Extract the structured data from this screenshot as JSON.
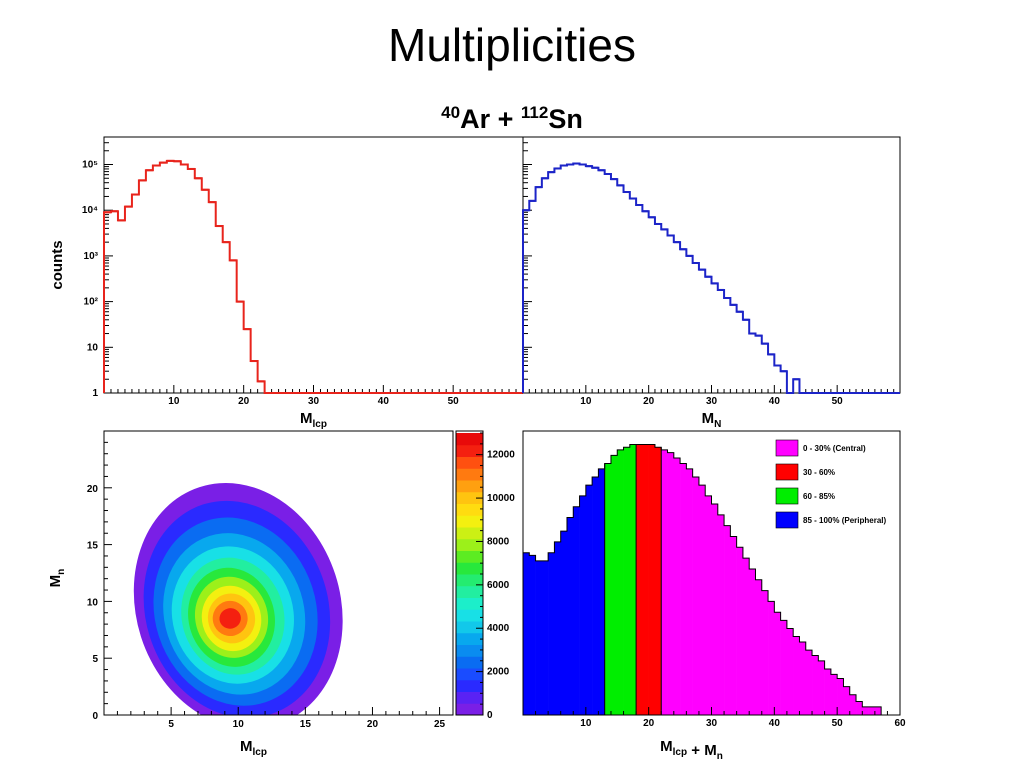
{
  "slide": {
    "title": "Multiplicities"
  },
  "figure": {
    "title_a_mass": "40",
    "title_a": "Ar + ",
    "title_b_mass": "112",
    "title_b": "Sn"
  },
  "chart_data": [
    {
      "type": "step",
      "panel": "top-left",
      "xlabel": "M_lcp",
      "ylabel": "counts",
      "xlim": [
        0,
        60
      ],
      "ylim": [
        1,
        400000
      ],
      "ylog": true,
      "xticks": [
        10,
        20,
        30,
        40,
        50
      ],
      "yticks": [
        {
          "v": 1,
          "t": "1"
        },
        {
          "v": 10,
          "t": "10"
        },
        {
          "v": 100,
          "t": "10²"
        },
        {
          "v": 1000,
          "t": "10³"
        },
        {
          "v": 10000,
          "t": "10⁴"
        },
        {
          "v": 100000,
          "t": "10⁵"
        }
      ],
      "color": "#e8241c",
      "bin_width": 1,
      "x": [
        0,
        1,
        2,
        3,
        4,
        5,
        6,
        7,
        8,
        9,
        10,
        11,
        12,
        13,
        14,
        15,
        16,
        17,
        18,
        19,
        20,
        21,
        22,
        23,
        24
      ],
      "values": [
        9000,
        9500,
        6000,
        12000,
        22000,
        45000,
        75000,
        95000,
        110000,
        120000,
        118000,
        100000,
        80000,
        50000,
        28000,
        15000,
        4500,
        2000,
        800,
        100,
        25,
        5,
        1.8,
        1,
        1
      ]
    },
    {
      "type": "step",
      "panel": "top-right",
      "xlabel": "M_N",
      "xlim": [
        0,
        60
      ],
      "ylim": [
        1,
        400000
      ],
      "ylog": true,
      "xticks": [
        10,
        20,
        30,
        40,
        50
      ],
      "color": "#1c24c8",
      "bin_width": 1,
      "x": [
        0,
        1,
        2,
        3,
        4,
        5,
        6,
        7,
        8,
        9,
        10,
        11,
        12,
        13,
        14,
        15,
        16,
        17,
        18,
        19,
        20,
        21,
        22,
        23,
        24,
        25,
        26,
        27,
        28,
        29,
        30,
        31,
        32,
        33,
        34,
        35,
        36,
        37,
        38,
        39,
        40,
        41,
        42,
        43,
        44,
        45,
        46,
        47
      ],
      "values": [
        10000,
        16000,
        32000,
        50000,
        68000,
        82000,
        95000,
        100000,
        105000,
        100000,
        92000,
        85000,
        75000,
        62000,
        48000,
        35000,
        25000,
        18000,
        13000,
        9500,
        7000,
        5000,
        3800,
        2800,
        2000,
        1400,
        1000,
        700,
        500,
        350,
        250,
        180,
        120,
        85,
        60,
        40,
        20,
        18,
        12,
        7,
        4,
        3,
        1,
        2,
        1,
        1,
        1,
        1
      ]
    },
    {
      "type": "heatmap",
      "panel": "bottom-left",
      "xlabel": "M_lcp",
      "ylabel": "M_n",
      "xlim": [
        0,
        26
      ],
      "ylim": [
        0,
        25
      ],
      "xticks": [
        5,
        10,
        15,
        20,
        25
      ],
      "yticks": [
        0,
        5,
        10,
        15,
        20
      ],
      "colorbar": {
        "range": [
          0,
          13000
        ],
        "ticks": [
          0,
          2000,
          4000,
          6000,
          8000,
          10000,
          12000
        ],
        "labels": [
          "0",
          "2000",
          "4000",
          "6000",
          "8000",
          "10000",
          "12000"
        ]
      },
      "contours": [
        {
          "level": 400,
          "color": "#7a1fe6",
          "cx": 10.0,
          "cy": 9.6,
          "rx": 7.6,
          "ry": 11.0,
          "rot": -18
        },
        {
          "level": 1300,
          "color": "#2a2aff",
          "cx": 9.9,
          "cy": 9.3,
          "rx": 6.8,
          "ry": 9.7,
          "rot": -18
        },
        {
          "level": 2200,
          "color": "#0a6cf2",
          "cx": 9.8,
          "cy": 9.1,
          "rx": 6.0,
          "ry": 8.4,
          "rot": -18
        },
        {
          "level": 3100,
          "color": "#08a8ee",
          "cx": 9.7,
          "cy": 8.9,
          "rx": 5.2,
          "ry": 7.2,
          "rot": -18
        },
        {
          "level": 4000,
          "color": "#18e0e6",
          "cx": 9.6,
          "cy": 8.8,
          "rx": 4.5,
          "ry": 6.1,
          "rot": -16
        },
        {
          "level": 5000,
          "color": "#22eea0",
          "cx": 9.6,
          "cy": 8.7,
          "rx": 3.8,
          "ry": 5.2,
          "rot": -16
        },
        {
          "level": 6000,
          "color": "#28e83c",
          "cx": 9.5,
          "cy": 8.6,
          "rx": 3.2,
          "ry": 4.4,
          "rot": -15
        },
        {
          "level": 7000,
          "color": "#9cf01a",
          "cx": 9.5,
          "cy": 8.6,
          "rx": 2.7,
          "ry": 3.6,
          "rot": -15
        },
        {
          "level": 8000,
          "color": "#f4f010",
          "cx": 9.5,
          "cy": 8.5,
          "rx": 2.2,
          "ry": 2.9,
          "rot": -15
        },
        {
          "level": 9000,
          "color": "#ffc410",
          "cx": 9.5,
          "cy": 8.5,
          "rx": 1.75,
          "ry": 2.2,
          "rot": -15
        },
        {
          "level": 10500,
          "color": "#ff7a10",
          "cx": 9.4,
          "cy": 8.5,
          "rx": 1.3,
          "ry": 1.55,
          "rot": -15
        },
        {
          "level": 12000,
          "color": "#f42010",
          "cx": 9.4,
          "cy": 8.5,
          "rx": 0.8,
          "ry": 0.9,
          "rot": -15
        }
      ]
    },
    {
      "type": "bar",
      "panel": "bottom-right",
      "xlabel": "M_lcp + M_n",
      "xlim": [
        0,
        60
      ],
      "xticks": [
        10,
        20,
        30,
        40,
        50,
        60
      ],
      "bin_width": 1,
      "x": [
        0,
        1,
        2,
        3,
        4,
        5,
        6,
        7,
        8,
        9,
        10,
        11,
        12,
        13,
        14,
        15,
        16,
        17,
        18,
        19,
        20,
        21,
        22,
        23,
        24,
        25,
        26,
        27,
        28,
        29,
        30,
        31,
        32,
        33,
        34,
        35,
        36,
        37,
        38,
        39,
        40,
        41,
        42,
        43,
        44,
        45,
        46,
        47,
        48,
        49,
        50,
        51,
        52,
        53,
        54,
        55,
        56
      ],
      "values": [
        60000,
        59000,
        57000,
        57000,
        60000,
        64000,
        68000,
        73000,
        77000,
        81000,
        85000,
        88000,
        91000,
        93000,
        96000,
        98000,
        99000,
        100000,
        100000,
        100000,
        100000,
        99000,
        98000,
        97000,
        95000,
        93000,
        91000,
        88000,
        85000,
        81000,
        78000,
        74000,
        70000,
        66000,
        62000,
        58000,
        54000,
        50000,
        46000,
        42000,
        38000,
        35000,
        32000,
        29000,
        27000,
        24000,
        22000,
        20000,
        17000,
        15000,
        13500,
        10500,
        7500,
        5000,
        3000,
        3000,
        3000
      ],
      "ymax": 105000,
      "categories": [
        {
          "label": "0 - 30% (Central)",
          "color": "#ff00ff",
          "from": 22,
          "to": 60
        },
        {
          "label": "30 - 60%",
          "color": "#ff0000",
          "from": 18,
          "to": 22
        },
        {
          "label": "60 - 85%",
          "color": "#00ee00",
          "from": 13,
          "to": 18
        },
        {
          "label": "85 - 100% (Peripheral)",
          "color": "#0000ff",
          "from": 0,
          "to": 13
        }
      ]
    }
  ]
}
